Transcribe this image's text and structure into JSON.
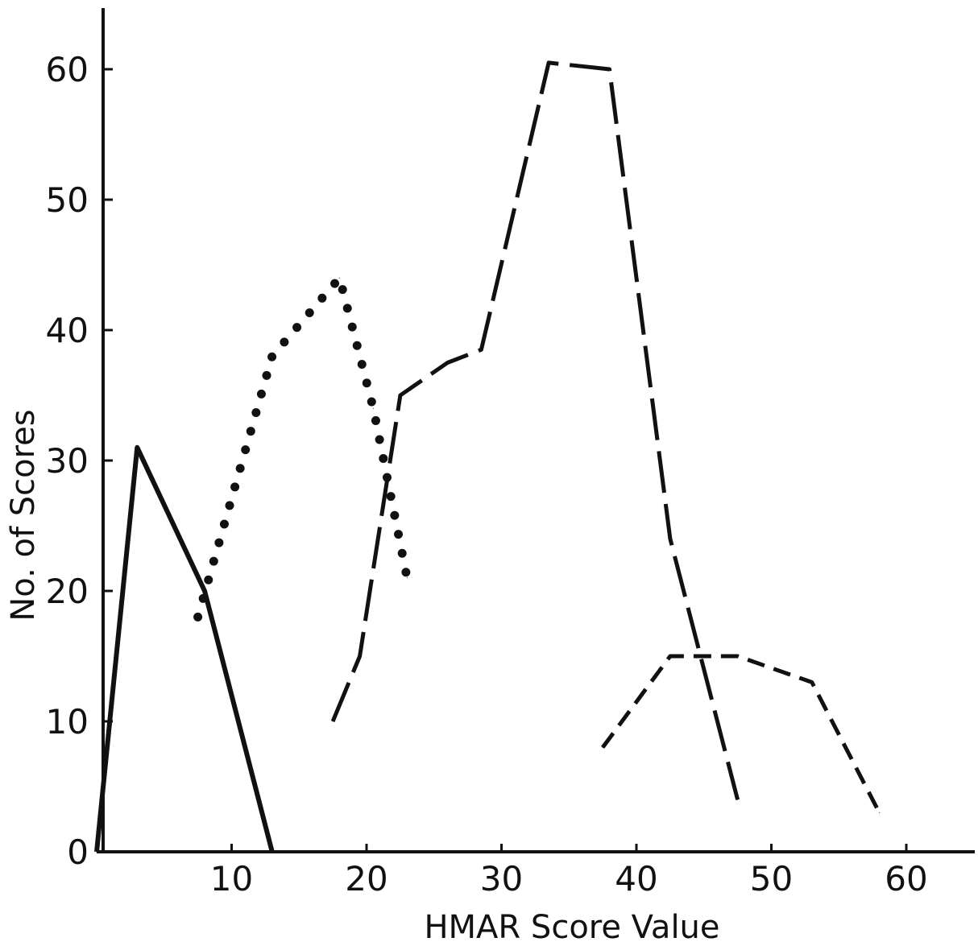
{
  "chart_data": {
    "type": "line",
    "title": "",
    "xlabel": "HMAR Score Value",
    "ylabel": "No. of Scores",
    "xlim": [
      0,
      65
    ],
    "ylim": [
      0,
      65
    ],
    "x_ticks": [
      10,
      20,
      30,
      40,
      50,
      60
    ],
    "y_ticks": [
      0,
      10,
      20,
      30,
      40,
      50,
      60
    ],
    "grid": false,
    "legend": "none",
    "series": [
      {
        "style": "solid",
        "color": "#111111",
        "points": [
          [
            0,
            0
          ],
          [
            3,
            31
          ],
          [
            8,
            20
          ],
          [
            13,
            0
          ]
        ]
      },
      {
        "style": "dotted",
        "color": "#111111",
        "points": [
          [
            7.5,
            18
          ],
          [
            13,
            38
          ],
          [
            18,
            44
          ],
          [
            20.5,
            34
          ],
          [
            23,
            21
          ]
        ]
      },
      {
        "style": "long-dash",
        "color": "#111111",
        "points": [
          [
            17.5,
            10
          ],
          [
            19.5,
            15
          ],
          [
            22.5,
            35
          ],
          [
            26,
            37.5
          ],
          [
            28.5,
            38.5
          ],
          [
            33.5,
            60.5
          ],
          [
            38,
            60
          ],
          [
            42.5,
            24
          ],
          [
            47.5,
            4
          ]
        ]
      },
      {
        "style": "short-dash",
        "color": "#111111",
        "points": [
          [
            37.5,
            8
          ],
          [
            42.5,
            15
          ],
          [
            47.5,
            15
          ],
          [
            53,
            13
          ],
          [
            58,
            3
          ]
        ]
      }
    ]
  }
}
